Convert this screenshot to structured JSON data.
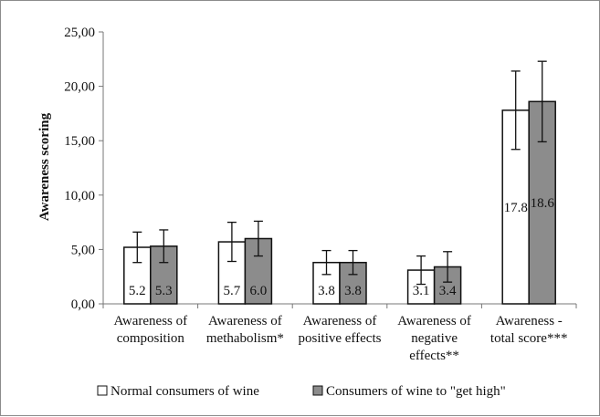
{
  "chart_data": {
    "type": "bar",
    "categories": [
      [
        "Awareness of",
        "composition"
      ],
      [
        "Awareness of",
        "methabolism*"
      ],
      [
        "Awareness of",
        "positive effects"
      ],
      [
        "Awareness of",
        "negative",
        "effects**"
      ],
      [
        "Awareness -",
        "total score***"
      ]
    ],
    "series": [
      {
        "name": "Normal consumers of wine",
        "color": "#ffffff",
        "values": [
          5.2,
          5.7,
          3.8,
          3.1,
          17.8
        ],
        "error": [
          1.4,
          1.8,
          1.1,
          1.3,
          3.6
        ],
        "labels": [
          "5.2",
          "5.7",
          "3.8",
          "3.1",
          "17.8"
        ]
      },
      {
        "name": "Consumers of wine to \"get high\"",
        "color": "#8c8c8c",
        "values": [
          5.3,
          6.0,
          3.8,
          3.4,
          18.6
        ],
        "error": [
          1.5,
          1.6,
          1.1,
          1.4,
          3.7
        ],
        "labels": [
          "5.3",
          "6.0",
          "3.8",
          "3.4",
          "18.6"
        ]
      }
    ],
    "ylabel": "Awareness scoring",
    "xlabel": "",
    "title": "",
    "ylim": [
      0,
      25
    ],
    "yticks": [
      0,
      5,
      10,
      15,
      20,
      25
    ],
    "ytick_labels": [
      "0,00",
      "5,00",
      "10,00",
      "15,00",
      "20,00",
      "25,00"
    ],
    "grid": false,
    "error_bars": true,
    "legend_position": "bottom"
  }
}
